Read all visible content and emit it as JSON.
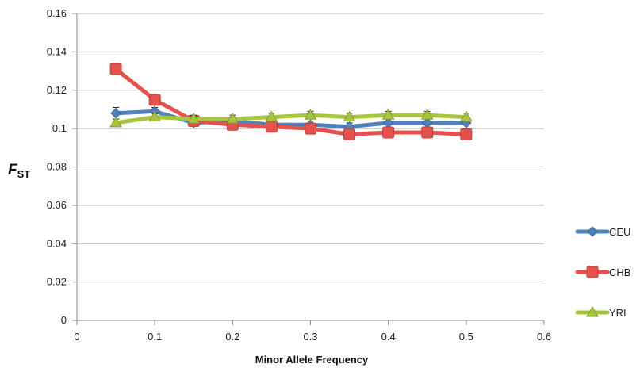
{
  "chart_data": {
    "type": "line",
    "title": "",
    "xlabel": "Minor Allele Frequency",
    "ylabel": {
      "main": "F",
      "sub": "ST"
    },
    "xlim": [
      0,
      0.6
    ],
    "ylim": [
      0,
      0.16
    ],
    "x_ticks": [
      "0",
      "0.1",
      "0.2",
      "0.3",
      "0.4",
      "0.5",
      "0.6"
    ],
    "y_ticks": [
      "0",
      "0.02",
      "0.04",
      "0.06",
      "0.08",
      "0.1",
      "0.12",
      "0.14",
      "0.16"
    ],
    "x_tick_values": [
      0,
      0.1,
      0.2,
      0.3,
      0.4,
      0.5,
      0.6
    ],
    "y_tick_values": [
      0,
      0.02,
      0.04,
      0.06,
      0.08,
      0.1,
      0.12,
      0.14,
      0.16
    ],
    "grid": "horizontal",
    "legend_position": "right",
    "x": [
      0.05,
      0.1,
      0.15,
      0.2,
      0.25,
      0.3,
      0.35,
      0.4,
      0.45,
      0.5
    ],
    "series": [
      {
        "name": "CEU",
        "color": "#4f81bd",
        "marker": "diamond",
        "values": [
          0.108,
          0.109,
          0.103,
          0.104,
          0.102,
          0.102,
          0.101,
          0.103,
          0.103,
          0.103
        ],
        "errors": [
          0.003,
          0.002,
          0.002,
          0.002,
          0.002,
          0.002,
          0.002,
          0.002,
          0.002,
          0.002
        ]
      },
      {
        "name": "CHB",
        "color": "#e5514d",
        "marker": "square",
        "values": [
          0.131,
          0.115,
          0.104,
          0.102,
          0.101,
          0.1,
          0.097,
          0.098,
          0.098,
          0.097
        ],
        "errors": [
          0.003,
          0.003,
          0.002,
          0.002,
          0.002,
          0.002,
          0.002,
          0.002,
          0.002,
          0.002
        ]
      },
      {
        "name": "YRI",
        "color": "#a7c53f",
        "marker": "triangle",
        "values": [
          0.103,
          0.106,
          0.105,
          0.105,
          0.106,
          0.107,
          0.106,
          0.107,
          0.107,
          0.106
        ],
        "errors": [
          0.002,
          0.002,
          0.002,
          0.002,
          0.002,
          0.002,
          0.002,
          0.002,
          0.002,
          0.002
        ]
      }
    ]
  }
}
